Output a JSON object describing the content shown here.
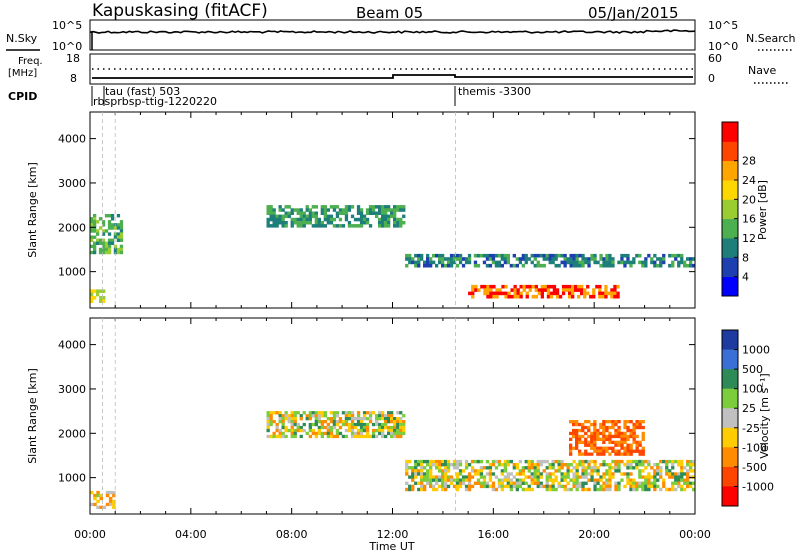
{
  "header": {
    "station": "Kapuskasing (fitACF)",
    "beam": "Beam 05",
    "date": "05/Jan/2015"
  },
  "top_panels": {
    "nsky_label": "N.Sky",
    "nsearch_label": "N.Search",
    "nsky_ticks": [
      "10^5",
      "10^0"
    ],
    "nsearch_ticks": [
      "10^5",
      "10^0"
    ],
    "freq_label_line1": "Freq.",
    "freq_label_line2": "[MHz]",
    "freq_ticks": [
      "18",
      "8"
    ],
    "nave_label": "Nave",
    "nave_ticks": [
      "60",
      "0"
    ],
    "cpid_label": "CPID",
    "cpid_annotations": [
      {
        "text": "tau (fast) 503",
        "time": 0.95
      },
      {
        "text": "rbsprbsp-ttig-1220220",
        "time": 0.1
      },
      {
        "text": "themis -3300",
        "time": 14.5
      }
    ]
  },
  "chart_data": [
    {
      "type": "heatmap",
      "title": "",
      "xlabel": "Time UT",
      "ylabel": "Slant Range [km]",
      "xlim": [
        0,
        24
      ],
      "ylim": [
        180,
        4600
      ],
      "x_tick_labels": [
        "00:00",
        "04:00",
        "08:00",
        "12:00",
        "16:00",
        "20:00",
        "00:00"
      ],
      "y_ticks": [
        1000,
        2000,
        3000,
        4000
      ],
      "colorbar": {
        "label": "Power [dB]",
        "ticks": [
          4,
          8,
          12,
          16,
          20,
          24,
          28
        ],
        "colors": [
          "#0000ff",
          "#1d3fb0",
          "#1e7f7a",
          "#4caf50",
          "#9acd32",
          "#ffd700",
          "#ffa500",
          "#ff4500",
          "#ff0000"
        ]
      },
      "features": [
        {
          "t0": 0.0,
          "t1": 1.3,
          "r0": 1400,
          "r1": 2300,
          "value": 14
        },
        {
          "t0": 0.0,
          "t1": 0.6,
          "r0": 300,
          "r1": 600,
          "value": 20
        },
        {
          "t0": 7.0,
          "t1": 12.5,
          "r0": 2000,
          "r1": 2500,
          "value": 12
        },
        {
          "t0": 12.5,
          "t1": 24.0,
          "r0": 1100,
          "r1": 1400,
          "value": 10
        },
        {
          "t0": 15.0,
          "t1": 21.0,
          "r0": 400,
          "r1": 700,
          "value": 28
        }
      ]
    },
    {
      "type": "heatmap",
      "title": "",
      "xlabel": "Time UT",
      "ylabel": "Slant Range [km]",
      "xlim": [
        0,
        24
      ],
      "ylim": [
        180,
        4600
      ],
      "x_tick_labels": [
        "00:00",
        "04:00",
        "08:00",
        "12:00",
        "16:00",
        "20:00",
        "00:00"
      ],
      "y_ticks": [
        1000,
        2000,
        3000,
        4000
      ],
      "colorbar": {
        "label": "Velocity [m s⁻¹]",
        "ticks": [
          1000,
          500,
          100,
          25,
          -25,
          -100,
          -500,
          -1000
        ],
        "colors": [
          "#1e3ca0",
          "#3a6fd6",
          "#2e8b57",
          "#7ccd3c",
          "#c0c0c0",
          "#ffcc00",
          "#ff8c00",
          "#ff4500",
          "#ff0000"
        ]
      },
      "features": [
        {
          "t0": 7.0,
          "t1": 12.5,
          "r0": 1900,
          "r1": 2500,
          "value": 0
        },
        {
          "t0": 12.5,
          "t1": 24.0,
          "r0": 700,
          "r1": 1400,
          "value": 0
        },
        {
          "t0": 0.0,
          "t1": 1.0,
          "r0": 300,
          "r1": 700,
          "value": -100
        },
        {
          "t0": 19.0,
          "t1": 22.0,
          "r0": 1500,
          "r1": 2300,
          "value": -500
        }
      ]
    }
  ]
}
